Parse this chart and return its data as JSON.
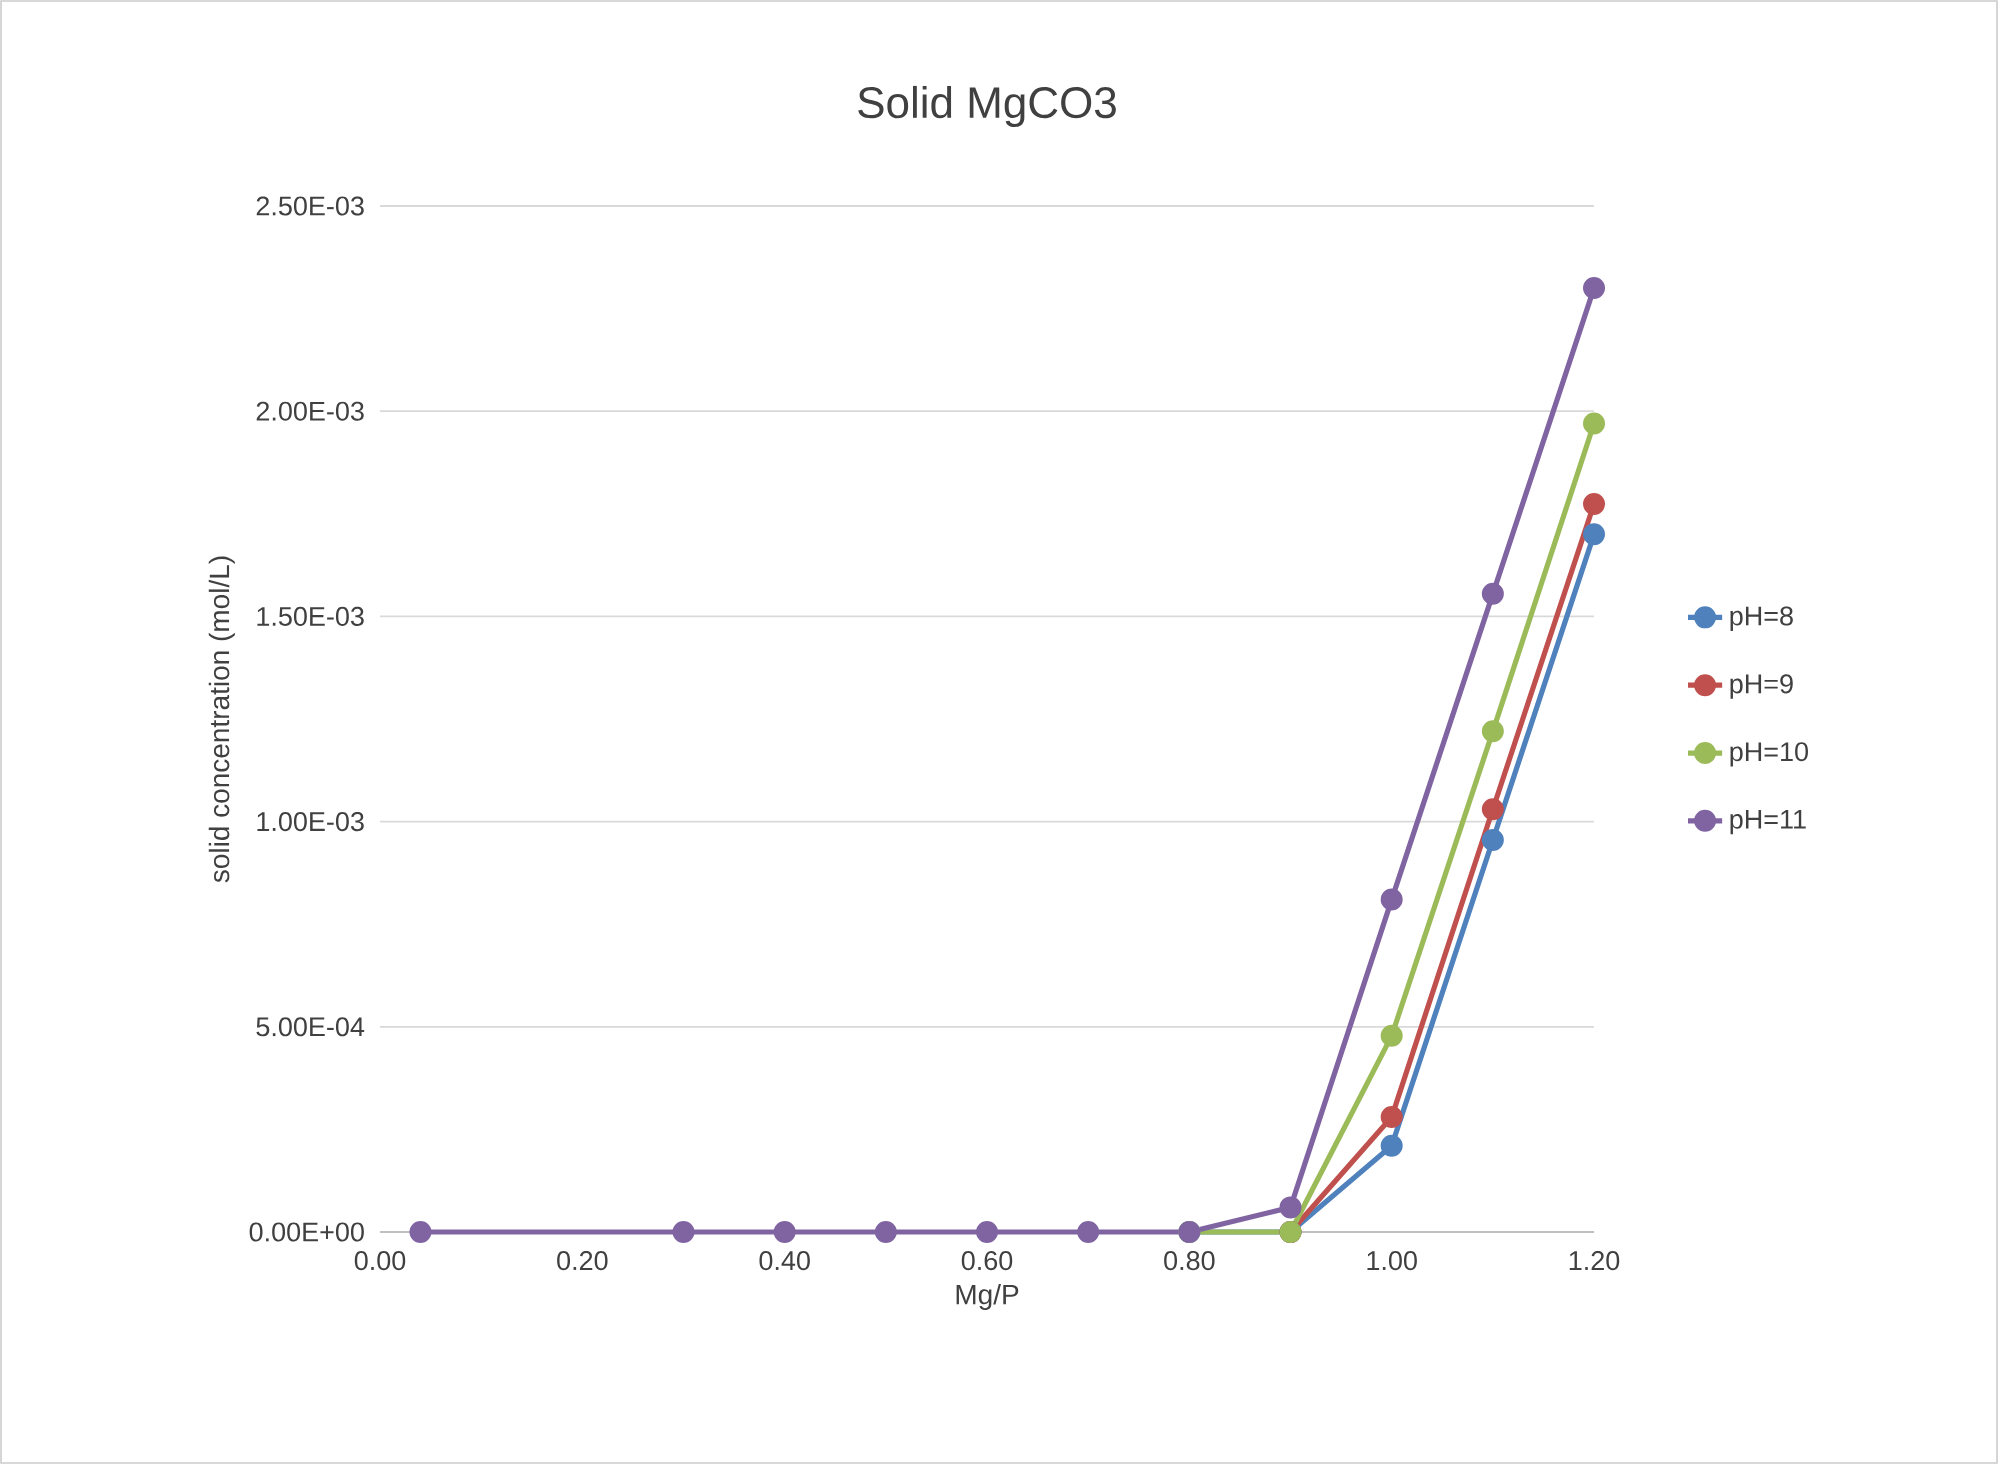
{
  "chart_data": {
    "type": "line",
    "title": "Solid MgCO3",
    "xlabel": "Mg/P",
    "ylabel": "solid concentration (mol/L)",
    "x": [
      0.04,
      0.3,
      0.4,
      0.5,
      0.6,
      0.7,
      0.8,
      0.9,
      1.0,
      1.1,
      1.2
    ],
    "series": [
      {
        "name": "pH=8",
        "color": "#4f81bd",
        "values": [
          null,
          null,
          null,
          null,
          null,
          null,
          0,
          0,
          0.00021,
          0.000955,
          0.0017
        ]
      },
      {
        "name": "pH=9",
        "color": "#c0504d",
        "values": [
          null,
          null,
          null,
          null,
          null,
          null,
          null,
          0,
          0.00028,
          0.00103,
          0.001774
        ]
      },
      {
        "name": "pH=10",
        "color": "#9bbb59",
        "values": [
          null,
          null,
          null,
          null,
          null,
          null,
          0,
          0,
          0.000478,
          0.00122,
          0.00197
        ]
      },
      {
        "name": "pH=11",
        "color": "#8064a2",
        "values": [
          0,
          0,
          0,
          0,
          0,
          0,
          0,
          6e-05,
          0.00081,
          0.001555,
          0.0023
        ]
      }
    ],
    "xlim": [
      0,
      1.2
    ],
    "xticks": [
      {
        "value": 0,
        "label": "0.00"
      },
      {
        "value": 0.2,
        "label": "0.20"
      },
      {
        "value": 0.4,
        "label": "0.40"
      },
      {
        "value": 0.6,
        "label": "0.60"
      },
      {
        "value": 0.8,
        "label": "0.80"
      },
      {
        "value": 1.0,
        "label": "1.00"
      },
      {
        "value": 1.2,
        "label": "1.20"
      }
    ],
    "ylim": [
      0,
      0.0025
    ],
    "yticks": [
      {
        "value": 0,
        "label": "0.00E+00"
      },
      {
        "value": 0.0005,
        "label": "5.00E-04"
      },
      {
        "value": 0.001,
        "label": "1.00E-03"
      },
      {
        "value": 0.0015,
        "label": "1.50E-03"
      },
      {
        "value": 0.002,
        "label": "2.00E-03"
      },
      {
        "value": 0.0025,
        "label": "2.50E-03"
      }
    ],
    "grid": "y",
    "legend": "right",
    "marker": "circle",
    "line_style": "solid"
  }
}
